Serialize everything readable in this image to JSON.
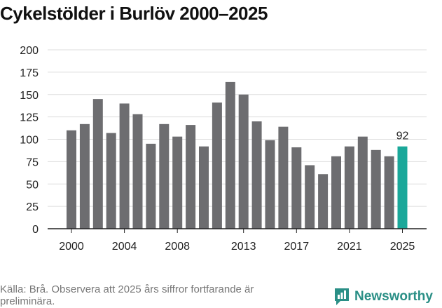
{
  "colors": {
    "bar": "#6d6d70",
    "highlight": "#1aa89a",
    "grid": "#dddddd",
    "axis": "#222222",
    "brand": "#2a8f86"
  },
  "chart_data": {
    "type": "bar",
    "title": "Cykelstölder i Burlöv 2000–2025",
    "xlabel": "",
    "ylabel": "",
    "ylim": [
      0,
      200
    ],
    "yticks": [
      0,
      25,
      50,
      75,
      100,
      125,
      150,
      175,
      200
    ],
    "xticks": [
      2000,
      2004,
      2008,
      2013,
      2017,
      2021,
      2025
    ],
    "categories": [
      2000,
      2001,
      2002,
      2003,
      2004,
      2005,
      2006,
      2007,
      2008,
      2009,
      2010,
      2011,
      2012,
      2013,
      2014,
      2015,
      2016,
      2017,
      2018,
      2019,
      2020,
      2021,
      2022,
      2023,
      2024,
      2025
    ],
    "values": [
      110,
      117,
      145,
      107,
      140,
      128,
      95,
      117,
      103,
      116,
      92,
      141,
      164,
      150,
      120,
      99,
      114,
      91,
      71,
      61,
      81,
      92,
      103,
      88,
      81,
      92
    ],
    "highlight": {
      "category": 2025,
      "label": "92"
    }
  },
  "footer": {
    "source": "Källa: Brå. Observera att 2025 års siffror fortfarande är preliminära.",
    "logo_text": "Newsworthy"
  }
}
